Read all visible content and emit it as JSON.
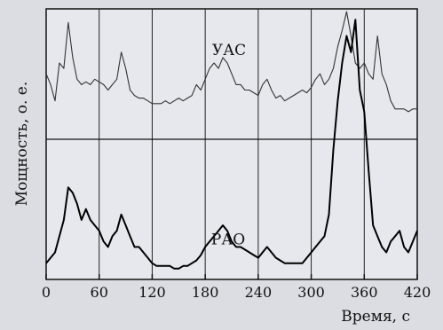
{
  "chart_data": {
    "type": "line",
    "xlabel": "Время, с",
    "ylabel": "Мощность, о. е.",
    "xlim": [
      0,
      420
    ],
    "x_ticks": [
      "0",
      "60",
      "120",
      "180",
      "240",
      "300",
      "360",
      "420"
    ],
    "grid": true,
    "series": [
      {
        "name": "УАС",
        "color": "#333333",
        "x": [
          0,
          5,
          10,
          15,
          20,
          25,
          30,
          35,
          40,
          45,
          50,
          55,
          60,
          65,
          70,
          75,
          80,
          85,
          90,
          95,
          100,
          105,
          110,
          115,
          120,
          125,
          130,
          135,
          140,
          145,
          150,
          155,
          160,
          165,
          170,
          175,
          180,
          185,
          190,
          195,
          200,
          205,
          210,
          215,
          220,
          225,
          230,
          235,
          240,
          245,
          250,
          255,
          260,
          265,
          270,
          275,
          280,
          285,
          290,
          295,
          300,
          305,
          310,
          315,
          320,
          325,
          330,
          335,
          340,
          345,
          350,
          355,
          360,
          365,
          370,
          375,
          380,
          385,
          390,
          395,
          400,
          405,
          410,
          415,
          420
        ],
        "values": [
          0.76,
          0.72,
          0.66,
          0.8,
          0.78,
          0.95,
          0.82,
          0.74,
          0.72,
          0.73,
          0.72,
          0.74,
          0.73,
          0.72,
          0.7,
          0.72,
          0.74,
          0.84,
          0.78,
          0.7,
          0.68,
          0.67,
          0.67,
          0.66,
          0.65,
          0.65,
          0.65,
          0.66,
          0.65,
          0.66,
          0.67,
          0.66,
          0.67,
          0.68,
          0.72,
          0.7,
          0.74,
          0.78,
          0.8,
          0.78,
          0.82,
          0.8,
          0.76,
          0.72,
          0.72,
          0.7,
          0.7,
          0.69,
          0.68,
          0.72,
          0.74,
          0.7,
          0.67,
          0.68,
          0.66,
          0.67,
          0.68,
          0.69,
          0.7,
          0.69,
          0.71,
          0.74,
          0.76,
          0.72,
          0.74,
          0.78,
          0.86,
          0.92,
          0.99,
          0.9,
          0.8,
          0.78,
          0.8,
          0.76,
          0.74,
          0.9,
          0.76,
          0.72,
          0.66,
          0.63,
          0.63,
          0.63,
          0.62,
          0.63,
          0.63
        ]
      },
      {
        "name": "РАО",
        "color": "#000000",
        "x": [
          0,
          5,
          10,
          15,
          20,
          25,
          30,
          35,
          40,
          45,
          50,
          55,
          60,
          65,
          70,
          75,
          80,
          85,
          90,
          95,
          100,
          105,
          110,
          115,
          120,
          125,
          130,
          135,
          140,
          145,
          150,
          155,
          160,
          165,
          170,
          175,
          180,
          185,
          190,
          195,
          200,
          205,
          210,
          215,
          220,
          225,
          230,
          235,
          240,
          245,
          250,
          255,
          260,
          265,
          270,
          275,
          280,
          285,
          290,
          295,
          300,
          305,
          310,
          315,
          320,
          325,
          330,
          335,
          340,
          345,
          350,
          355,
          360,
          365,
          370,
          375,
          380,
          385,
          390,
          395,
          400,
          405,
          410,
          415,
          420
        ],
        "values": [
          0.06,
          0.08,
          0.1,
          0.16,
          0.22,
          0.34,
          0.32,
          0.28,
          0.22,
          0.26,
          0.22,
          0.2,
          0.18,
          0.14,
          0.12,
          0.16,
          0.18,
          0.24,
          0.2,
          0.16,
          0.12,
          0.12,
          0.1,
          0.08,
          0.06,
          0.05,
          0.05,
          0.05,
          0.05,
          0.04,
          0.04,
          0.05,
          0.05,
          0.06,
          0.07,
          0.09,
          0.12,
          0.14,
          0.16,
          0.18,
          0.2,
          0.18,
          0.14,
          0.12,
          0.12,
          0.11,
          0.1,
          0.09,
          0.08,
          0.1,
          0.12,
          0.1,
          0.08,
          0.07,
          0.06,
          0.06,
          0.06,
          0.06,
          0.06,
          0.08,
          0.1,
          0.12,
          0.14,
          0.16,
          0.24,
          0.48,
          0.66,
          0.8,
          0.9,
          0.84,
          0.96,
          0.7,
          0.62,
          0.4,
          0.2,
          0.16,
          0.12,
          0.1,
          0.14,
          0.16,
          0.18,
          0.12,
          0.1,
          0.14,
          0.18
        ]
      }
    ],
    "annotations": [
      {
        "text": "УАС",
        "x": 207,
        "y": 0.83
      },
      {
        "text": "РАО",
        "x": 206,
        "y": 0.13
      }
    ]
  }
}
